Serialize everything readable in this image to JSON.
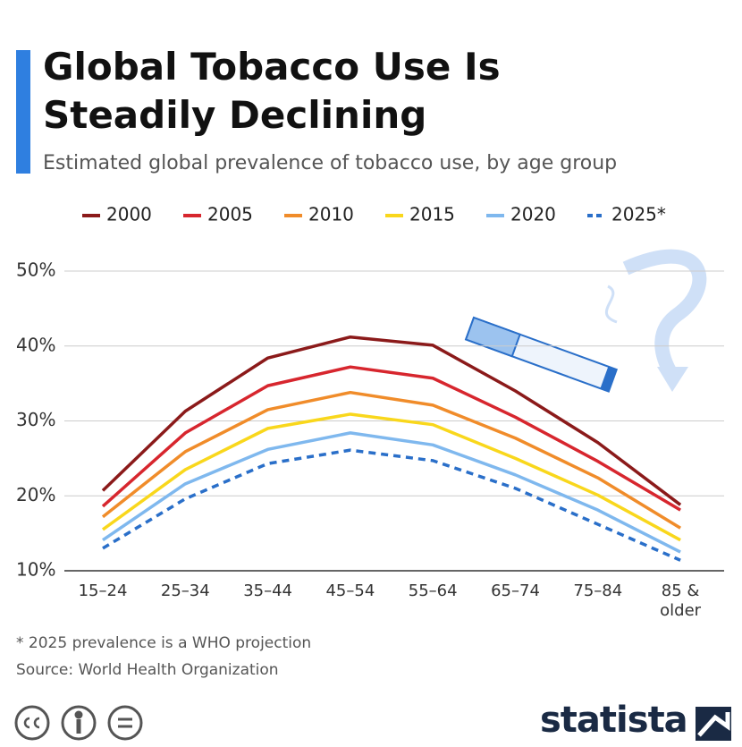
{
  "chart_data": {
    "type": "line",
    "title": "Global Tobacco Use Is Steadily Declining",
    "subtitle": "Estimated global prevalence of tobacco use, by age group",
    "categories": [
      "15–24",
      "25–34",
      "35–44",
      "45–54",
      "55–64",
      "65–74",
      "75–84",
      "85 & older"
    ],
    "series": [
      {
        "name": "2000",
        "color": "#8b1a1a",
        "values": [
          20.7,
          31.3,
          38.4,
          41.2,
          40.1,
          34.0,
          27.1,
          18.8
        ]
      },
      {
        "name": "2005",
        "color": "#d7262e",
        "values": [
          18.6,
          28.4,
          34.7,
          37.2,
          35.7,
          30.5,
          24.6,
          18.1
        ]
      },
      {
        "name": "2010",
        "color": "#f08c2a",
        "values": [
          17.2,
          25.9,
          31.5,
          33.8,
          32.1,
          27.7,
          22.4,
          15.7
        ]
      },
      {
        "name": "2015",
        "color": "#f9d71c",
        "values": [
          15.5,
          23.5,
          29.0,
          30.9,
          29.5,
          25.0,
          20.1,
          14.1
        ]
      },
      {
        "name": "2020",
        "color": "#7fb8ee",
        "values": [
          14.1,
          21.6,
          26.2,
          28.4,
          26.8,
          22.8,
          18.1,
          12.5
        ]
      },
      {
        "name": "2025*",
        "color": "#2a6fc9",
        "linestyle": "dashed",
        "values": [
          13.0,
          19.6,
          24.3,
          26.1,
          24.7,
          21.0,
          16.2,
          11.4
        ]
      }
    ],
    "ylim": [
      10,
      50
    ],
    "yticks": [
      {
        "value": 10,
        "label": "10%"
      },
      {
        "value": 20,
        "label": "20%"
      },
      {
        "value": 30,
        "label": "30%"
      },
      {
        "value": 40,
        "label": "40%"
      },
      {
        "value": 50,
        "label": "50%"
      }
    ],
    "grid": true,
    "legend": "top",
    "note": "* 2025 prevalence is a WHO projection",
    "source": "Source: World Health Organization",
    "brand": "statista"
  }
}
